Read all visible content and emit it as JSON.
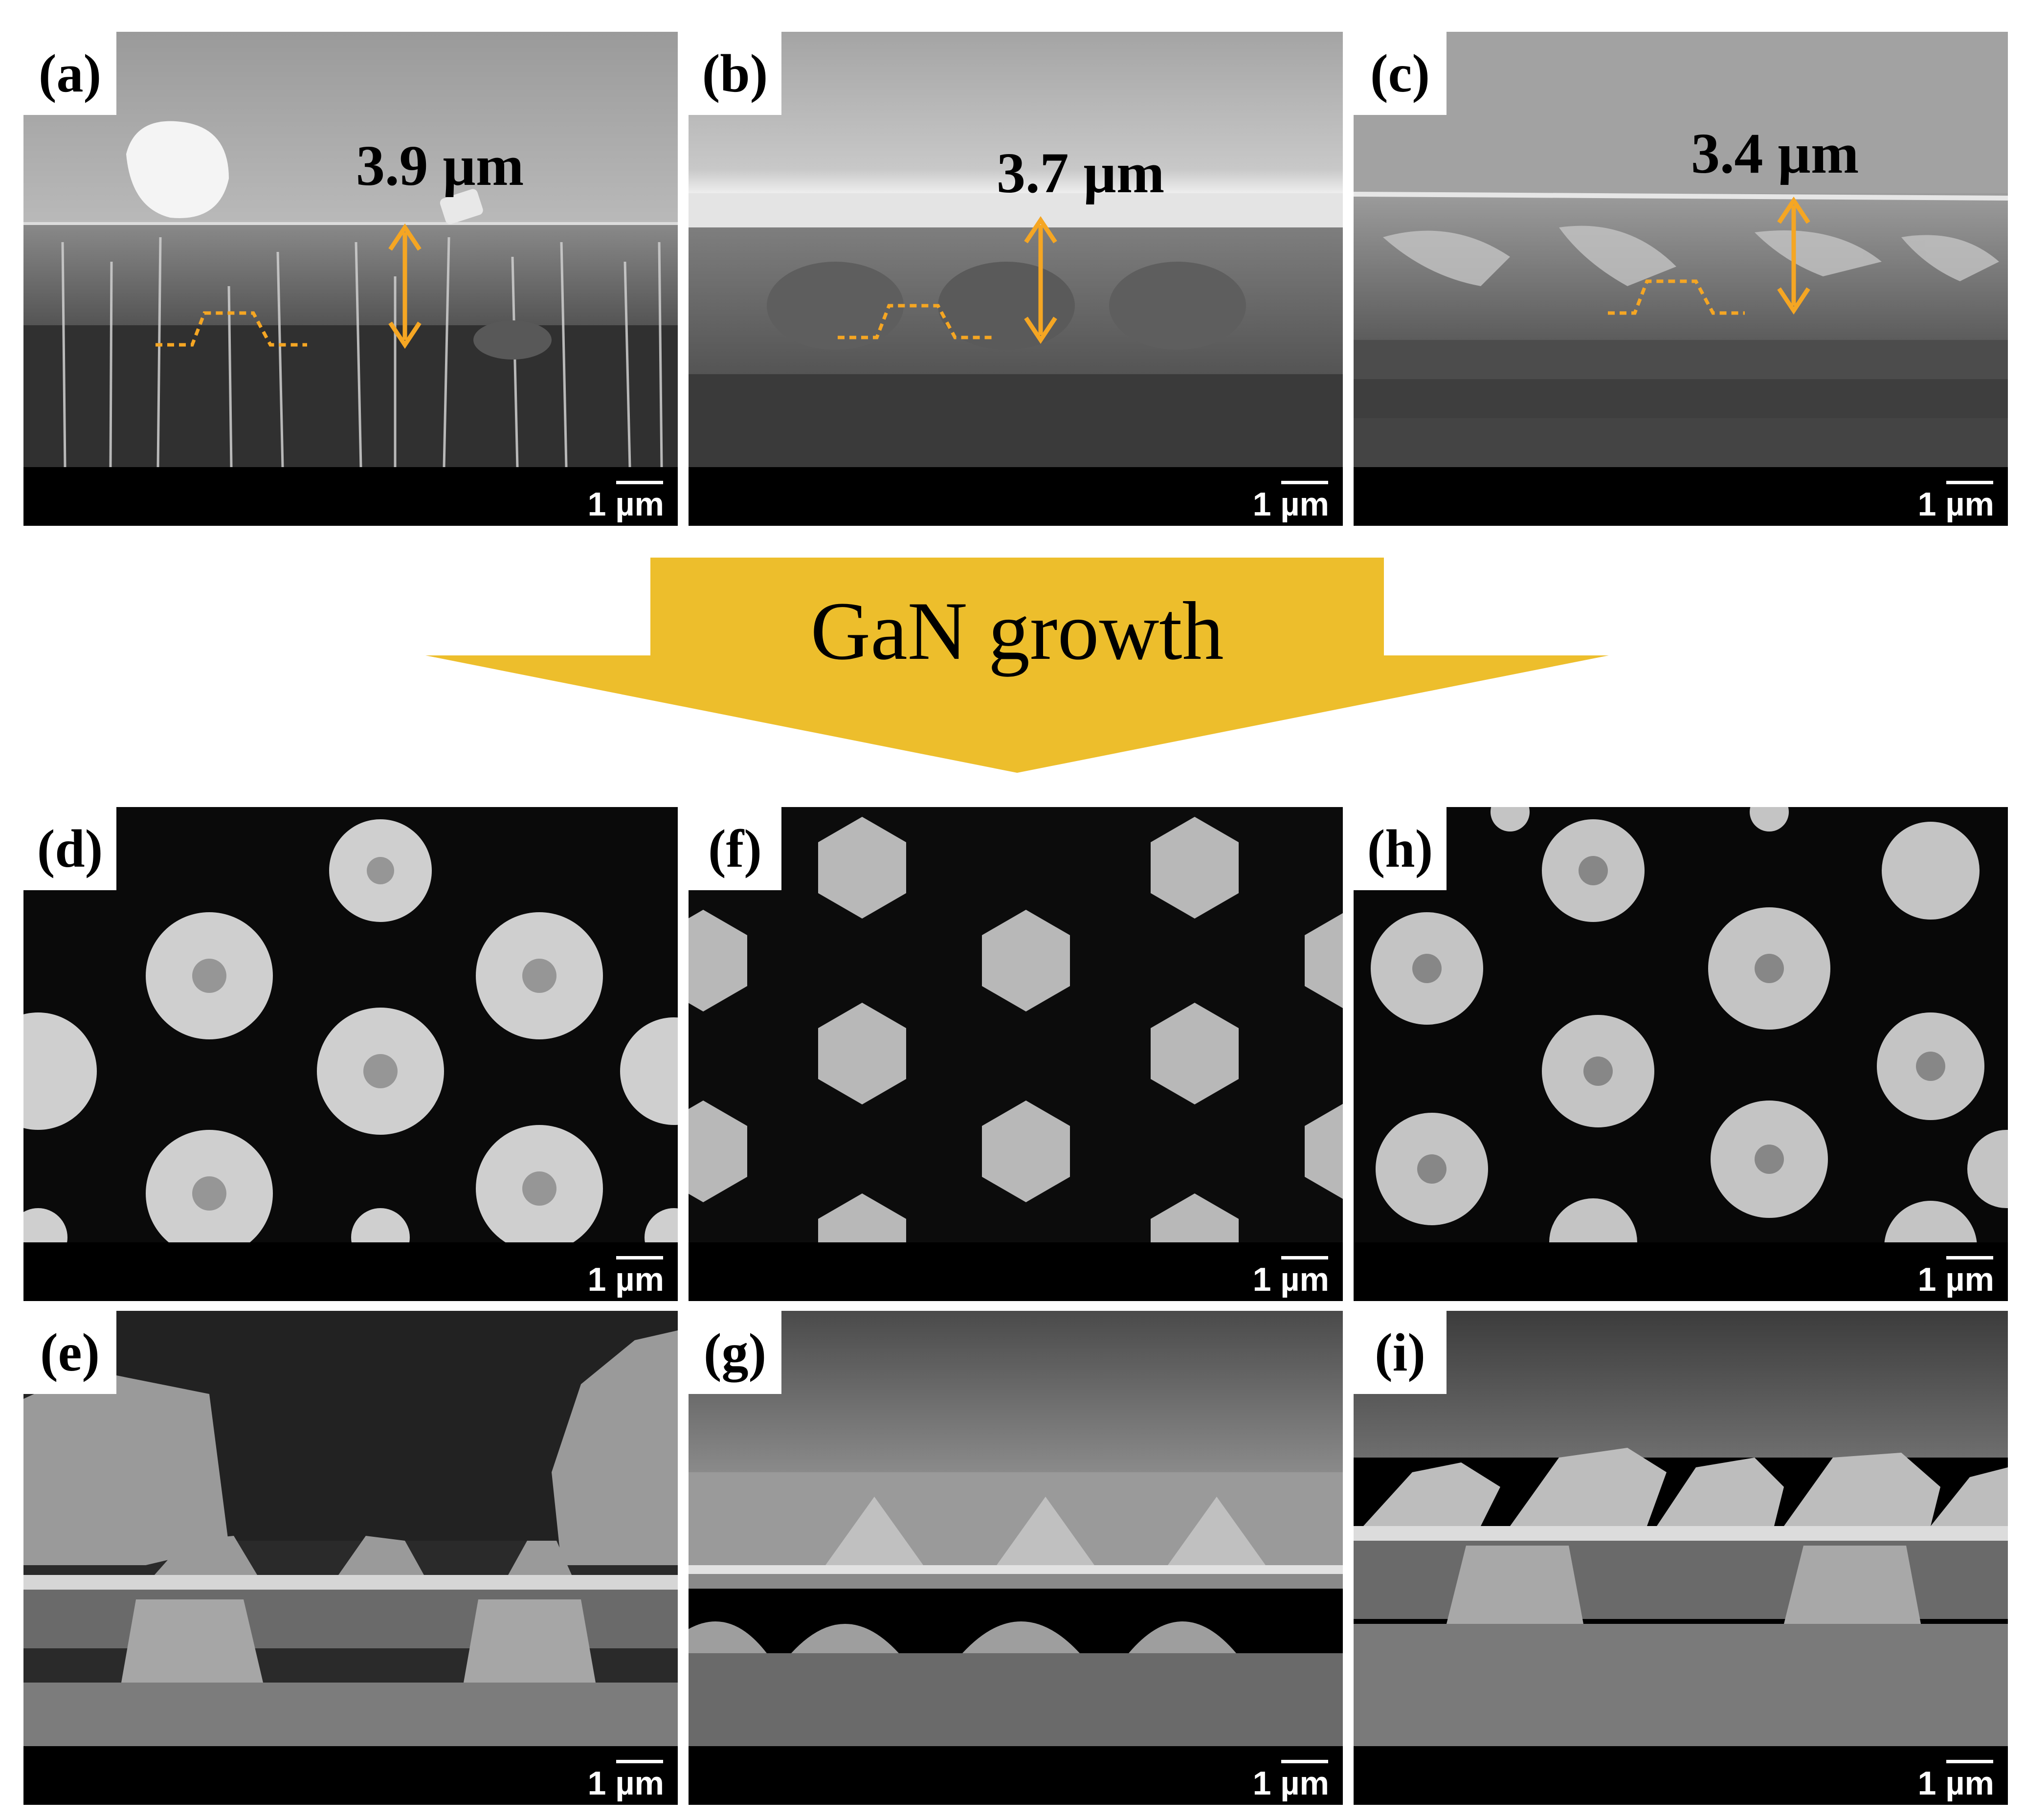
{
  "colors": {
    "arrow_fill": "#EDBE2C",
    "annotation": "#F5A623",
    "label_bg": "#FFFFFF",
    "scale_bar_bg": "#000000"
  },
  "growth_arrow": {
    "label": "GaN growth"
  },
  "panels": {
    "a": {
      "letter": "(a)",
      "thickness": "3.9 µm",
      "scale_value": "1",
      "scale_unit": "µm"
    },
    "b": {
      "letter": "(b)",
      "thickness": "3.7 µm",
      "scale_value": "1",
      "scale_unit": "µm"
    },
    "c": {
      "letter": "(c)",
      "thickness": "3.4 µm",
      "scale_value": "1",
      "scale_unit": "µm"
    },
    "d": {
      "letter": "(d)",
      "scale_value": "1",
      "scale_unit": "µm"
    },
    "f": {
      "letter": "(f)",
      "scale_value": "1",
      "scale_unit": "µm"
    },
    "h": {
      "letter": "(h)",
      "scale_value": "1",
      "scale_unit": "µm"
    },
    "e": {
      "letter": "(e)",
      "scale_value": "1",
      "scale_unit": "µm"
    },
    "g": {
      "letter": "(g)",
      "scale_value": "1",
      "scale_unit": "µm"
    },
    "i": {
      "letter": "(i)",
      "scale_value": "1",
      "scale_unit": "µm"
    }
  }
}
